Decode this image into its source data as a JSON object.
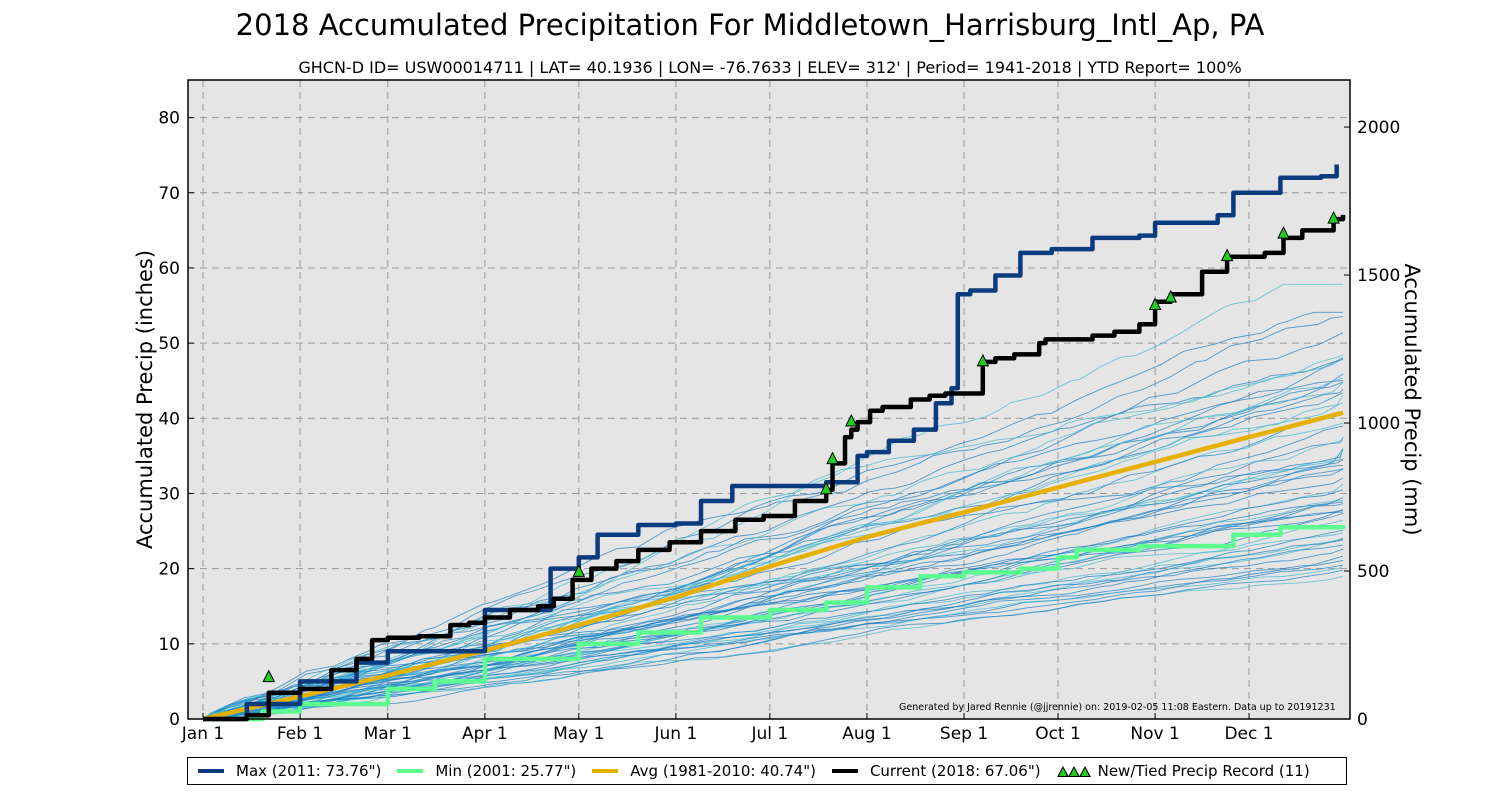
{
  "title": "2018 Accumulated Precipitation For Middletown_Harrisburg_Intl_Ap, PA",
  "subtitle": "GHCN-D ID= USW00014711 | LAT= 40.1936 | LON= -76.7633 | ELEV= 312' | Period= 1941-2018 |  YTD Report= 100%",
  "credit": "Generated by Jared Rennie (@jjrennie) on: 2019-02-05 11:08 Eastern. Data up to 20191231",
  "legend": {
    "max": "Max (2011:  73.76\")",
    "min": "Min (2001:  25.77\")",
    "avg": "Avg (1981-2010:  40.74\")",
    "current": "Current (2018:  67.06\")",
    "record": "New/Tied Precip Record (11)"
  },
  "colors": {
    "max": "#0b3b7f",
    "min": "#5cff8f",
    "avg": "#e6b000",
    "current": "#000000",
    "history": "#1a7fc4",
    "history_light": "#40b8d0",
    "record_marker": "#22cc22",
    "plot_bg": "#e5e5e5"
  },
  "chart_data": {
    "type": "line",
    "title": "2018 Accumulated Precipitation For Middletown_Harrisburg_Intl_Ap, PA",
    "ylabel": "Accumulated Precip (inches)",
    "y2label": "Accumulated Precip (mm)",
    "xlabel": "",
    "xlim": [
      1,
      365
    ],
    "ylim": [
      0,
      85
    ],
    "y2lim": [
      0,
      2159
    ],
    "yticks": [
      "0",
      "10",
      "20",
      "30",
      "40",
      "50",
      "60",
      "70",
      "80"
    ],
    "y2ticks": [
      "0",
      "500",
      "1000",
      "1500",
      "2000"
    ],
    "xticks": [
      {
        "label": "Jan 1",
        "day": 1
      },
      {
        "label": "Feb 1",
        "day": 32
      },
      {
        "label": "Mar 1",
        "day": 60
      },
      {
        "label": "Apr 1",
        "day": 91
      },
      {
        "label": "May 1",
        "day": 121
      },
      {
        "label": "Jun 1",
        "day": 152
      },
      {
        "label": "Jul 1",
        "day": 182
      },
      {
        "label": "Aug 1",
        "day": 213
      },
      {
        "label": "Sep 1",
        "day": 244
      },
      {
        "label": "Oct 1",
        "day": 274
      },
      {
        "label": "Nov 1",
        "day": 305
      },
      {
        "label": "Dec 1",
        "day": 335
      }
    ],
    "grid": true,
    "legend_position": "bottom",
    "series": [
      {
        "name": "Max (2011:  73.76\")",
        "key": "max",
        "x": [
          1,
          15,
          32,
          50,
          60,
          91,
          112,
          121,
          127,
          140,
          152,
          160,
          170,
          182,
          200,
          210,
          213,
          220,
          228,
          235,
          240,
          242,
          246,
          254,
          262,
          272,
          285,
          300,
          305,
          325,
          330,
          345,
          358,
          363
        ],
        "y": [
          0,
          2.0,
          5.0,
          7.5,
          9.0,
          14.5,
          20.0,
          21.5,
          24.5,
          25.8,
          26.0,
          29.0,
          31.0,
          31.0,
          31.5,
          35.0,
          35.5,
          37.0,
          38.5,
          42.0,
          44.0,
          56.5,
          57.0,
          59.0,
          62.0,
          62.5,
          64.0,
          64.3,
          66.0,
          67.0,
          70.0,
          72.0,
          72.2,
          73.76
        ]
      },
      {
        "name": "Min (2001:  25.77\")",
        "key": "min",
        "x": [
          1,
          20,
          32,
          60,
          75,
          91,
          121,
          140,
          160,
          182,
          200,
          213,
          230,
          244,
          262,
          274,
          280,
          300,
          330,
          345,
          365
        ],
        "y": [
          0,
          1.0,
          2.0,
          4.0,
          5.0,
          8.0,
          10.0,
          11.5,
          13.5,
          14.5,
          15.5,
          17.5,
          19.0,
          19.5,
          20.0,
          21.5,
          22.5,
          23.0,
          24.5,
          25.5,
          25.77
        ]
      },
      {
        "name": "Avg (1981-2010:  40.74\")",
        "key": "avg",
        "x": [
          1,
          32,
          60,
          91,
          121,
          152,
          182,
          213,
          244,
          274,
          305,
          335,
          365
        ],
        "y": [
          0,
          3.0,
          5.8,
          9.1,
          12.5,
          16.2,
          20.3,
          24.2,
          27.5,
          30.8,
          34.2,
          37.5,
          40.74
        ]
      },
      {
        "name": "Current (2018:  67.06\")",
        "key": "current",
        "x": [
          1,
          15,
          22,
          32,
          42,
          50,
          55,
          60,
          70,
          80,
          86,
          91,
          99,
          108,
          113,
          119,
          125,
          133,
          140,
          150,
          160,
          171,
          180,
          190,
          200,
          202,
          206,
          208,
          210,
          214,
          218,
          227,
          233,
          238,
          250,
          254,
          260,
          268,
          270,
          285,
          292,
          300,
          305,
          310,
          320,
          328,
          340,
          346,
          352,
          362,
          365
        ],
        "y": [
          0,
          0.5,
          3.5,
          4.0,
          6.5,
          8.0,
          10.5,
          10.8,
          11.0,
          12.5,
          12.8,
          13.5,
          14.5,
          15.0,
          16.0,
          18.5,
          20.0,
          21.0,
          22.5,
          23.5,
          25.0,
          26.5,
          27.0,
          29.0,
          30.5,
          34.0,
          37.5,
          38.5,
          39.5,
          41.0,
          41.5,
          42.5,
          43.0,
          43.3,
          47.5,
          48.0,
          48.5,
          50.0,
          50.5,
          51.0,
          51.5,
          52.5,
          55.5,
          56.5,
          59.5,
          61.5,
          62.0,
          64.0,
          65.0,
          66.5,
          67.06
        ]
      }
    ],
    "records": {
      "name": "New/Tied Precip Record (11)",
      "x": [
        22,
        121,
        200,
        202,
        208,
        250,
        305,
        310,
        328,
        346,
        362
      ],
      "y": [
        5.5,
        19.5,
        30.5,
        34.5,
        39.5,
        47.5,
        55.0,
        56.0,
        61.5,
        64.5,
        66.5
      ]
    }
  }
}
